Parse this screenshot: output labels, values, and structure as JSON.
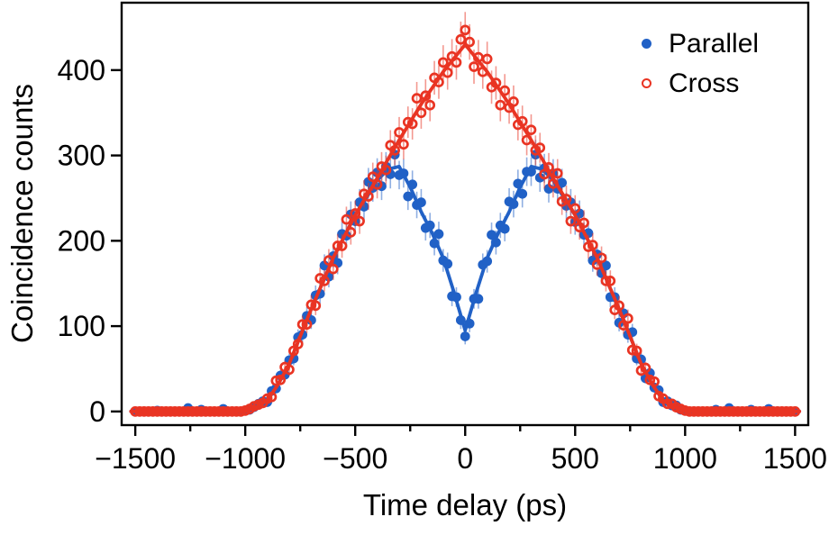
{
  "chart_data": {
    "type": "scatter",
    "title": "",
    "xlabel": "Time delay (ps)",
    "ylabel": "Coincidence counts",
    "xlim": [
      -1562,
      1560
    ],
    "ylim": [
      -16,
      479
    ],
    "x_ticks_major": [
      -1500,
      -1000,
      -500,
      0,
      500,
      1000,
      1500
    ],
    "x_tick_labels": [
      "−1500",
      "−1000",
      "−500",
      "0",
      "500",
      "1000",
      "1500"
    ],
    "x_ticks_minor": [
      -1250,
      -750,
      -250,
      250,
      750,
      1250
    ],
    "y_ticks": [
      0,
      100,
      200,
      300,
      400
    ],
    "y_tick_labels": [
      "0",
      "100",
      "200",
      "300",
      "400"
    ],
    "grid": false,
    "legend_position": "top-right-inside",
    "error_bars": "poisson sqrt(N), vertical only",
    "series": [
      {
        "name": "Parallel",
        "marker": "filled-circle",
        "color": "#2161c6",
        "x_start": -1500,
        "x_step": 20,
        "y": [
          0,
          0,
          0,
          0,
          0,
          1,
          0,
          0,
          0,
          0,
          0,
          0,
          4,
          0,
          0,
          2,
          0,
          0,
          0,
          0,
          3,
          0,
          0,
          0,
          0,
          1,
          2,
          5,
          9,
          12,
          11,
          24,
          27,
          42,
          43,
          60,
          62,
          87,
          90,
          112,
          107,
          136,
          138,
          171,
          158,
          182,
          174,
          208,
          206,
          231,
          223,
          245,
          240,
          269,
          262,
          280,
          264,
          287,
          278,
          301,
          277,
          279,
          252,
          266,
          242,
          245,
          215,
          218,
          197,
          208,
          177,
          173,
          135,
          134,
          107,
          88,
          103,
          132,
          132,
          172,
          176,
          207,
          198,
          218,
          214,
          246,
          243,
          267,
          255,
          281,
          281,
          301,
          274,
          285,
          261,
          279,
          261,
          268,
          241,
          245,
          222,
          232,
          207,
          209,
          177,
          184,
          162,
          171,
          134,
          134,
          104,
          115,
          90,
          93,
          62,
          61,
          39,
          45,
          28,
          25,
          11,
          12,
          7,
          7,
          2,
          1,
          0,
          0,
          0,
          0,
          0,
          0,
          2,
          0,
          0,
          4,
          0,
          0,
          0,
          0,
          2,
          0,
          0,
          0,
          3,
          0,
          0,
          0,
          0,
          0,
          0
        ],
        "fit": {
          "t": [
            -1520,
            -1150,
            -1050,
            -1000,
            -950,
            -900,
            -850,
            -800,
            -750,
            -700,
            -650,
            -600,
            -550,
            -500,
            -450,
            -400,
            -350,
            -300,
            -250,
            -200,
            -150,
            -100,
            -50,
            0,
            50,
            100,
            150,
            200,
            250,
            300,
            350,
            400,
            450,
            500,
            550,
            600,
            650,
            700,
            750,
            800,
            850,
            900,
            950,
            1000,
            1050,
            1150,
            1520
          ],
          "y": [
            0,
            0,
            0,
            1,
            5,
            13,
            32,
            56,
            88,
            120,
            150,
            180,
            205,
            230,
            250,
            271,
            284,
            287,
            263,
            234,
            209,
            180,
            139,
            95,
            139,
            180,
            209,
            234,
            263,
            287,
            284,
            271,
            250,
            230,
            205,
            180,
            150,
            120,
            88,
            56,
            32,
            13,
            5,
            1,
            0,
            0,
            0
          ]
        }
      },
      {
        "name": "Cross",
        "marker": "open-circle",
        "color": "#e93423",
        "x_start": -1500,
        "x_step": 20,
        "y": [
          0,
          0,
          0,
          0,
          0,
          0,
          0,
          0,
          0,
          0,
          0,
          0,
          0,
          0,
          0,
          0,
          0,
          0,
          0,
          0,
          0,
          0,
          0,
          0,
          0,
          1,
          3,
          6,
          8,
          10,
          15,
          17,
          36,
          37,
          52,
          49,
          71,
          79,
          102,
          102,
          125,
          124,
          156,
          153,
          177,
          167,
          194,
          194,
          225,
          210,
          232,
          223,
          255,
          252,
          275,
          266,
          287,
          283,
          312,
          306,
          327,
          313,
          339,
          337,
          367,
          350,
          370,
          359,
          391,
          386,
          409,
          397,
          416,
          409,
          436,
          447,
          433,
          404,
          415,
          398,
          413,
          380,
          385,
          359,
          376,
          356,
          363,
          336,
          340,
          318,
          330,
          306,
          309,
          278,
          286,
          267,
          279,
          246,
          249,
          223,
          238,
          216,
          221,
          193,
          195,
          172,
          180,
          153,
          153,
          119,
          124,
          101,
          109,
          72,
          71,
          48,
          51,
          37,
          35,
          18,
          15,
          9,
          9,
          5,
          3,
          1,
          0,
          0,
          0,
          0,
          0,
          0,
          0,
          0,
          0,
          0,
          0,
          0,
          0,
          0,
          0,
          0,
          0,
          0,
          0,
          0,
          0,
          0,
          0,
          0,
          0
        ],
        "fit": {
          "t": [
            -1520,
            -1150,
            -1050,
            -1000,
            -950,
            -900,
            -850,
            -800,
            -750,
            -700,
            -650,
            -600,
            -550,
            -500,
            -450,
            -400,
            -350,
            -300,
            -250,
            -200,
            -150,
            -100,
            -50,
            0,
            50,
            100,
            150,
            200,
            250,
            300,
            350,
            400,
            450,
            500,
            550,
            600,
            650,
            700,
            750,
            800,
            850,
            900,
            950,
            1000,
            1050,
            1150,
            1520
          ],
          "y": [
            0,
            0,
            0,
            1,
            5,
            13,
            32,
            56,
            88,
            120,
            150,
            180,
            205,
            230,
            252,
            273,
            296,
            318,
            339,
            360,
            379,
            398,
            414,
            430,
            414,
            398,
            379,
            360,
            339,
            318,
            296,
            273,
            252,
            230,
            205,
            180,
            150,
            120,
            88,
            56,
            32,
            13,
            5,
            1,
            0,
            0,
            0
          ]
        }
      }
    ]
  },
  "styles": {
    "axis_color": "#000000",
    "background": "#ffffff",
    "tick_font_px": 32,
    "axis_title_font_px": 33
  }
}
